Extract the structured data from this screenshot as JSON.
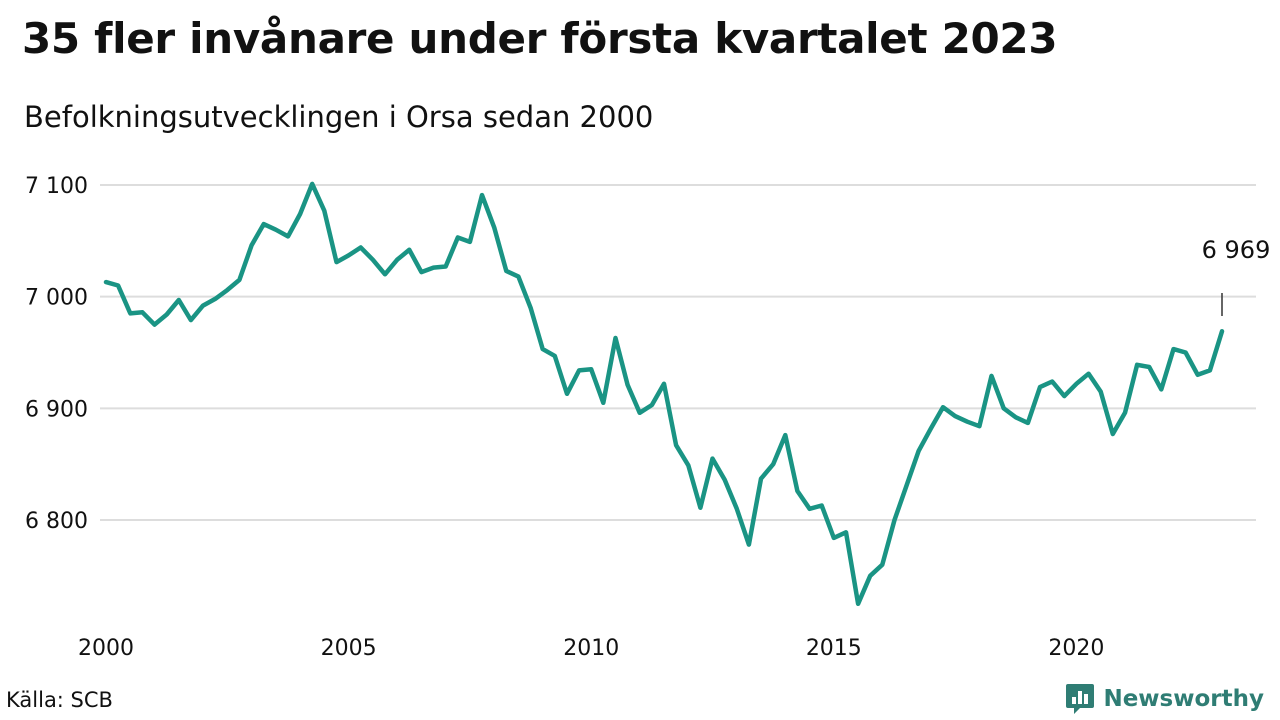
{
  "header": {
    "title": "35 fler invånare under första kvartalet 2023",
    "subtitle": "Befolkningsutvecklingen i Orsa sedan 2000"
  },
  "footer": {
    "source": "Källa: SCB",
    "brand": "Newsworthy",
    "brand_icon": "bar-chart-speech-bubble-icon"
  },
  "colors": {
    "line": "#1a9484",
    "grid": "#dddddd",
    "brand": "#2f7d74"
  },
  "chart_data": {
    "type": "line",
    "title": "35 fler invånare under första kvartalet 2023",
    "subtitle": "Befolkningsutvecklingen i Orsa sedan 2000",
    "xlabel": "",
    "ylabel": "",
    "x_ticks": [
      2000,
      2005,
      2010,
      2015,
      2020
    ],
    "x_tick_labels": [
      "2000",
      "2005",
      "2010",
      "2015",
      "2020"
    ],
    "y_ticks": [
      6800,
      6900,
      7000,
      7100
    ],
    "y_tick_labels": [
      "6 800",
      "6 900",
      "7 000",
      "7 100"
    ],
    "xlim": [
      2000,
      2023.4
    ],
    "ylim": [
      6715,
      7105
    ],
    "grid": true,
    "legend": "none",
    "annotation": {
      "x": 2023.0,
      "text": "6 969"
    },
    "series": [
      {
        "x": [
          2000.0,
          2000.25,
          2000.5,
          2000.75,
          2001.0,
          2001.25,
          2001.5,
          2001.75,
          2002.0,
          2002.25,
          2002.5,
          2002.75,
          2003.0,
          2003.25,
          2003.5,
          2003.75,
          2004.0,
          2004.25,
          2004.5,
          2004.75,
          2005.0,
          2005.25,
          2005.5,
          2005.75,
          2006.0,
          2006.25,
          2006.5,
          2006.75,
          2007.0,
          2007.25,
          2007.5,
          2007.75,
          2008.0,
          2008.25,
          2008.5,
          2008.75,
          2009.0,
          2009.25,
          2009.5,
          2009.75,
          2010.0,
          2010.25,
          2010.5,
          2010.75,
          2011.0,
          2011.25,
          2011.5,
          2011.75,
          2012.0,
          2012.25,
          2012.5,
          2012.75,
          2013.0,
          2013.25,
          2013.5,
          2013.75,
          2014.0,
          2014.25,
          2014.5,
          2014.75,
          2015.0,
          2015.25,
          2015.5,
          2015.75,
          2016.0,
          2016.25,
          2016.5,
          2016.75,
          2017.0,
          2017.25,
          2017.5,
          2017.75,
          2018.0,
          2018.25,
          2018.5,
          2018.75,
          2019.0,
          2019.25,
          2019.5,
          2019.75,
          2020.0,
          2020.25,
          2020.5,
          2020.75,
          2021.0,
          2021.25,
          2021.5,
          2021.75,
          2022.0,
          2022.25,
          2022.5,
          2022.75,
          2023.0
        ],
        "values": [
          7013,
          7010,
          6985,
          6986,
          6975,
          6984,
          6997,
          6979,
          6992,
          6998,
          7006,
          7015,
          7046,
          7065,
          7060,
          7054,
          7074,
          7101,
          7077,
          7031,
          7037,
          7044,
          7033,
          7020,
          7033,
          7042,
          7022,
          7026,
          7027,
          7053,
          7049,
          7091,
          7062,
          7023,
          7018,
          6990,
          6953,
          6947,
          6913,
          6934,
          6935,
          6905,
          6963,
          6921,
          6896,
          6903,
          6922,
          6867,
          6849,
          6811,
          6855,
          6836,
          6810,
          6778,
          6837,
          6850,
          6876,
          6826,
          6810,
          6813,
          6784,
          6789,
          6725,
          6750,
          6760,
          6800,
          6831,
          6862,
          6882,
          6901,
          6893,
          6888,
          6884,
          6929,
          6900,
          6892,
          6887,
          6919,
          6924,
          6911,
          6922,
          6931,
          6915,
          6877,
          6896,
          6939,
          6937,
          6917,
          6953,
          6950,
          6930,
          6934,
          6969
        ]
      }
    ]
  }
}
